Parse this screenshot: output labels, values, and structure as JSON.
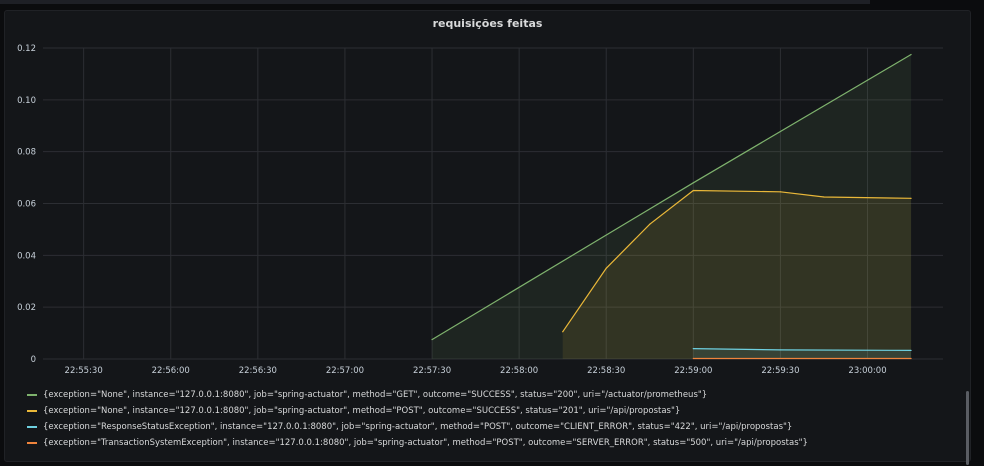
{
  "panel": {
    "title": "requisições feitas"
  },
  "chart_data": {
    "type": "area",
    "title": "requisições feitas",
    "xlabel": "",
    "ylabel": "",
    "ylim": [
      0,
      0.12
    ],
    "y_ticks": [
      0,
      0.02,
      0.04,
      0.06,
      0.08,
      0.1,
      0.12
    ],
    "y_tick_labels": [
      "0",
      "0.02",
      "0.04",
      "0.06",
      "0.08",
      "0.10",
      "0.12"
    ],
    "xlim": [
      "22:55:16",
      "23:00:26"
    ],
    "x_ticks": [
      "22:55:30",
      "22:56:00",
      "22:56:30",
      "22:57:00",
      "22:57:30",
      "22:58:00",
      "22:58:30",
      "22:59:00",
      "22:59:30",
      "23:00:00"
    ],
    "grid": true,
    "legend_position": "bottom",
    "series": [
      {
        "name": "{exception=\"None\", instance=\"127.0.0.1:8080\", job=\"spring-actuator\", method=\"GET\", outcome=\"SUCCESS\", status=\"200\", uri=\"/actuator/prometheus\"}",
        "color": "#7eb26d",
        "x": [
          "22:57:30",
          "22:59:00",
          "23:00:15"
        ],
        "values": [
          0.0075,
          0.068,
          0.1175
        ]
      },
      {
        "name": "{exception=\"None\", instance=\"127.0.0.1:8080\", job=\"spring-actuator\", method=\"POST\", outcome=\"SUCCESS\", status=\"201\", uri=\"/api/propostas\"}",
        "color": "#eab839",
        "x": [
          "22:58:15",
          "22:58:30",
          "22:58:45",
          "22:59:00",
          "22:59:30",
          "22:59:45",
          "23:00:15"
        ],
        "values": [
          0.0105,
          0.035,
          0.052,
          0.065,
          0.0645,
          0.0625,
          0.062
        ]
      },
      {
        "name": "{exception=\"ResponseStatusException\", instance=\"127.0.0.1:8080\", job=\"spring-actuator\", method=\"POST\", outcome=\"CLIENT_ERROR\", status=\"422\", uri=\"/api/propostas\"}",
        "color": "#6ed0e0",
        "x": [
          "22:59:00",
          "22:59:30",
          "23:00:15"
        ],
        "values": [
          0.004,
          0.0035,
          0.0033
        ]
      },
      {
        "name": "{exception=\"TransactionSystemException\", instance=\"127.0.0.1:8080\", job=\"spring-actuator\", method=\"POST\", outcome=\"SERVER_ERROR\", status=\"500\", uri=\"/api/propostas\"}",
        "color": "#ef843c",
        "x": [
          "22:59:00",
          "23:00:15"
        ],
        "values": [
          0.0002,
          0.0002
        ]
      }
    ]
  }
}
